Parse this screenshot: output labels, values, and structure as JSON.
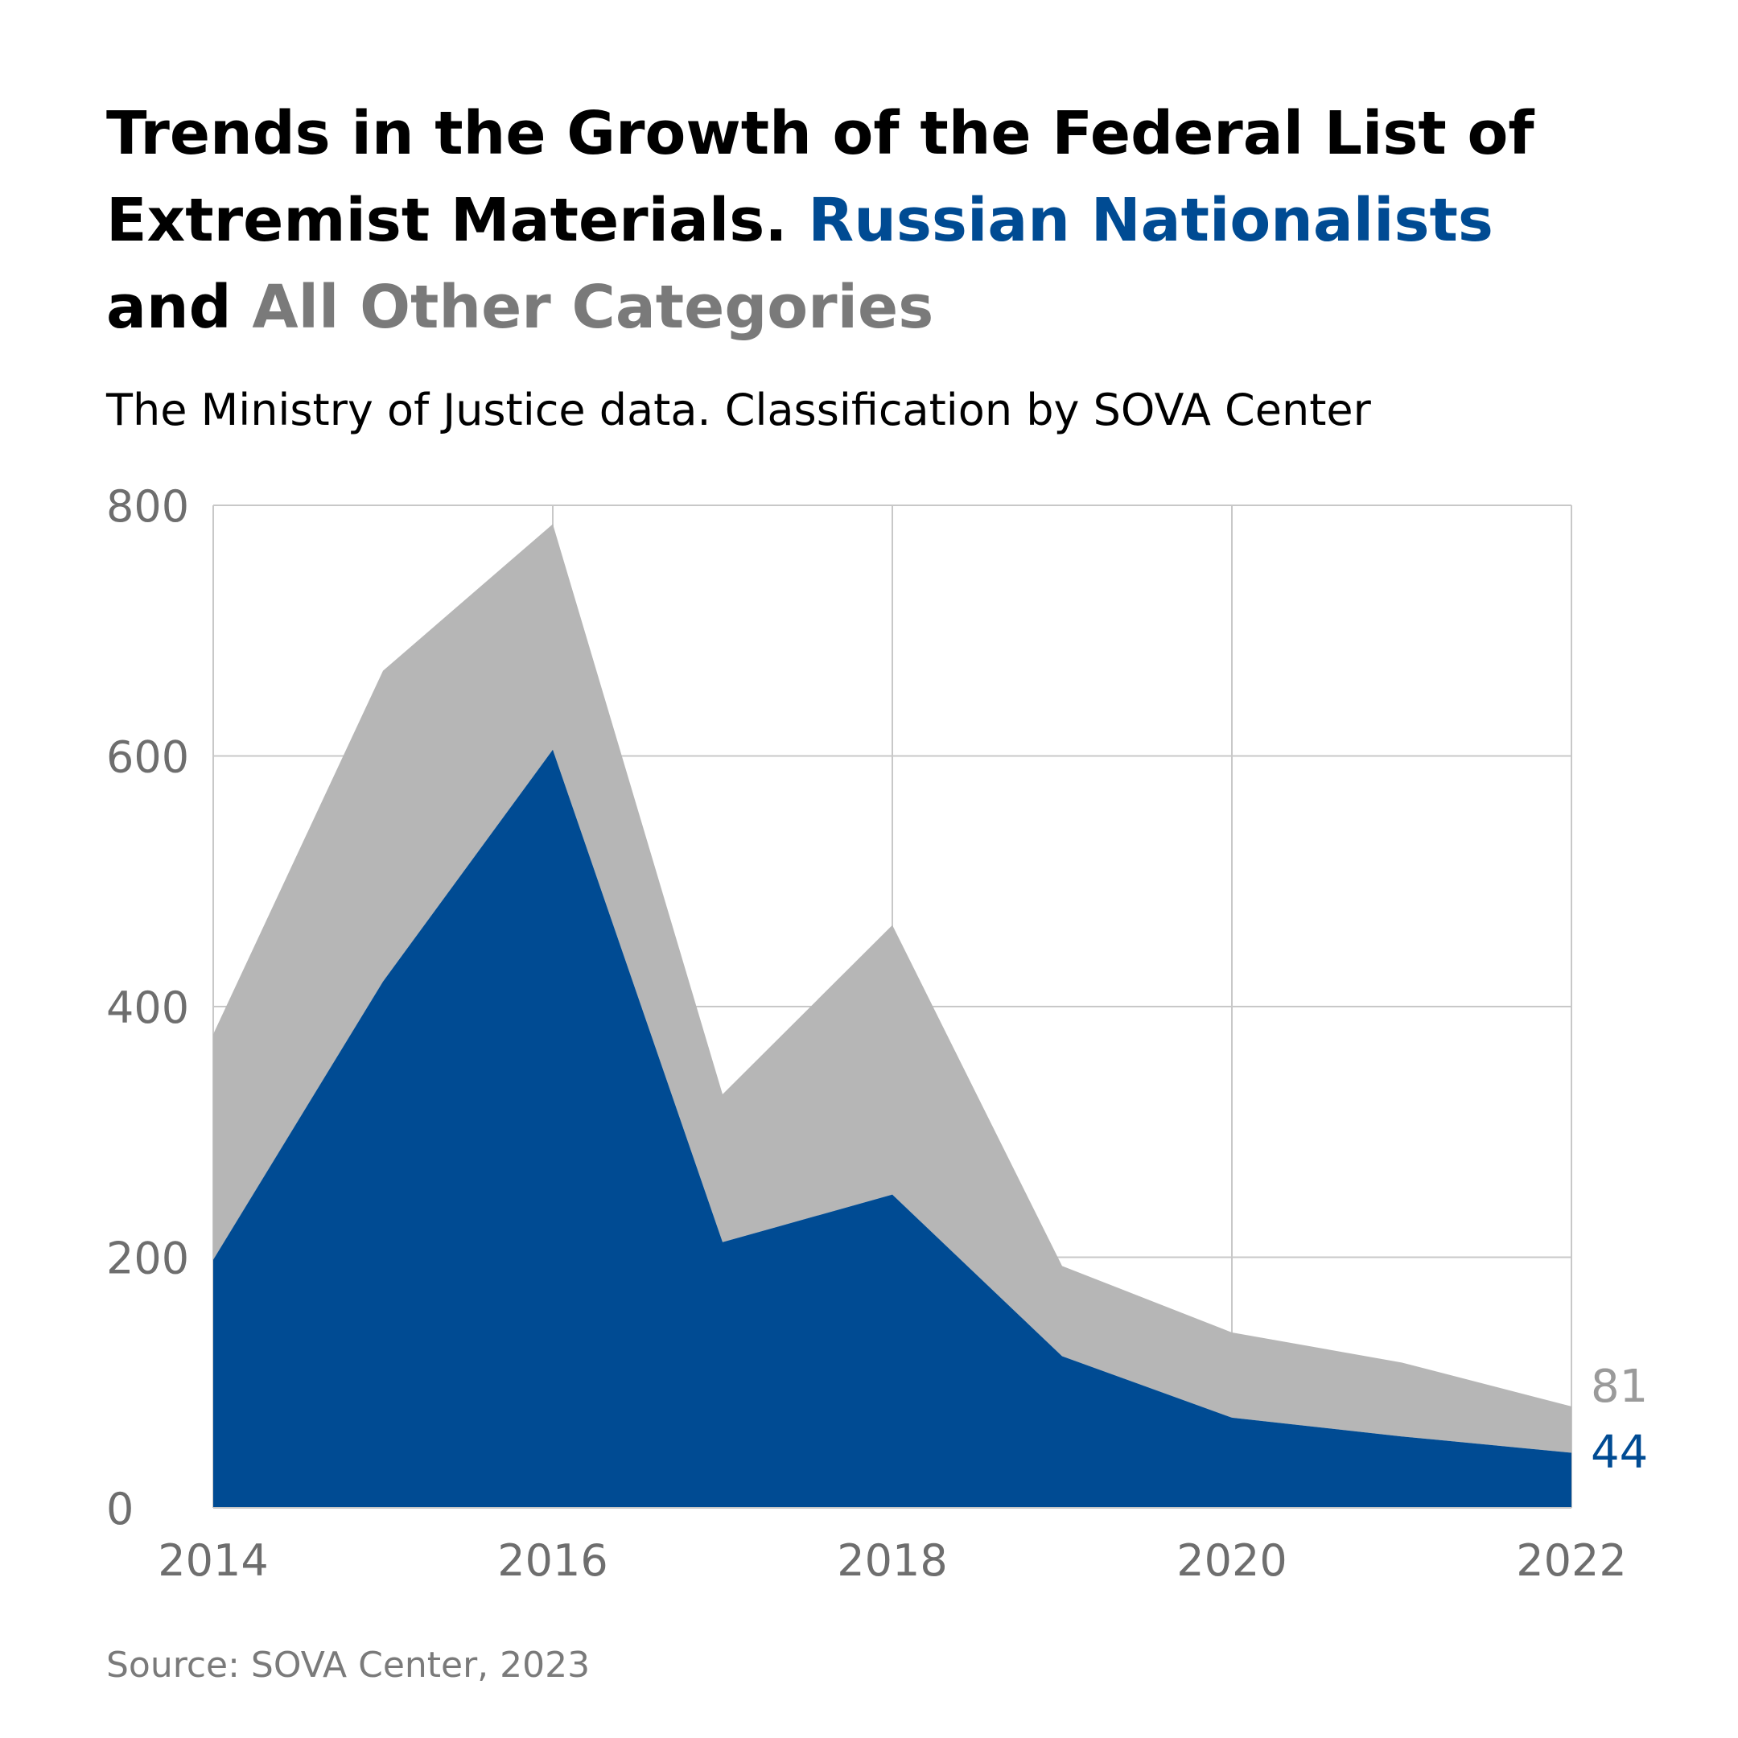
{
  "title": {
    "part1": "Trends in the Growth of the Federal List of Extremist Materials.",
    "highlight1": "Russian Nationalists",
    "connector": "and",
    "highlight2": "All Other Categories"
  },
  "subtitle": "The Ministry of Justice data. Classification by SOVA Center",
  "source": "Source: SOVA Center, 2023",
  "colors": {
    "nationalists": "#004b93",
    "other": "#b6b6b6",
    "grid": "#c8c8c8",
    "axis_text": "#6e6e6e",
    "title_gray": "#7a7a7a"
  },
  "chart_data": {
    "type": "area",
    "stacked": true,
    "x": [
      2014,
      2015,
      2016,
      2017,
      2018,
      2019,
      2020,
      2021,
      2022
    ],
    "series": [
      {
        "name": "Russian Nationalists",
        "values": [
          198,
          420,
          605,
          212,
          250,
          121,
          72,
          57,
          44
        ]
      },
      {
        "name": "All Other Categories",
        "values": [
          180,
          248,
          180,
          118,
          215,
          72,
          68,
          59,
          37
        ]
      }
    ],
    "totals": [
      378,
      668,
      785,
      330,
      465,
      193,
      140,
      116,
      81
    ],
    "ylim": [
      0,
      800
    ],
    "yticks": [
      0,
      200,
      400,
      600,
      800
    ],
    "xticks": [
      2014,
      2016,
      2018,
      2020,
      2022
    ],
    "xlim": [
      2014,
      2022
    ],
    "grid": true,
    "end_labels": {
      "total": "81",
      "nationalists": "44"
    }
  }
}
